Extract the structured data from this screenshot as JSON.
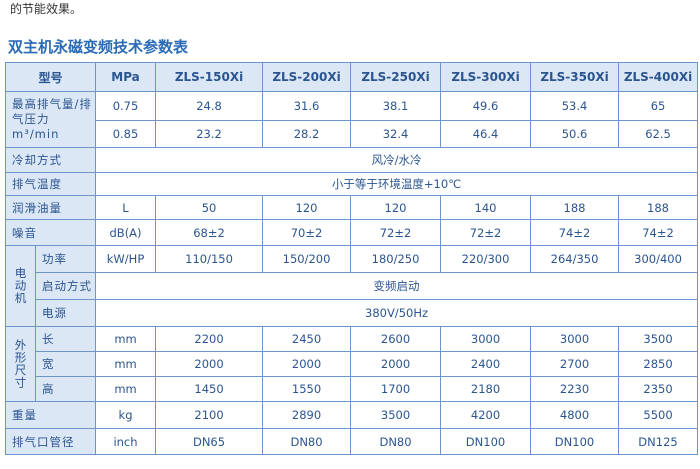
{
  "intro": "的节能效果。",
  "title": "双主机永磁变频技术参数表",
  "table": {
    "header": [
      "型号",
      "MPa",
      "ZLS-150Xi",
      "ZLS-200Xi",
      "ZLS-250Xi",
      "ZLS-300Xi",
      "ZLS-350Xi",
      "ZLS-400Xi"
    ],
    "sections": [
      {
        "label": "最高排气量/排气压力",
        "unit": "m³/min",
        "rows": [
          [
            "0.75",
            "24.8",
            "31.6",
            "38.1",
            "49.6",
            "53.4",
            "65"
          ],
          [
            "0.85",
            "23.2",
            "28.2",
            "32.4",
            "46.4",
            "50.6",
            "62.5"
          ]
        ]
      },
      {
        "label": "冷却方式",
        "span": "风冷/水冷"
      },
      {
        "label": "排气温度",
        "span": "小于等于环境温度+10℃"
      },
      {
        "label": "润滑油量",
        "cells": [
          "L",
          "50",
          "120",
          "120",
          "140",
          "188",
          "188"
        ]
      },
      {
        "label": "噪音",
        "cells": [
          "dB(A)",
          "68±2",
          "70±2",
          "72±2",
          "72±2",
          "74±2",
          "74±2"
        ]
      },
      {
        "group": "电动机",
        "rows": [
          {
            "label": "功率",
            "cells": [
              "kW/HP",
              "110/150",
              "150/200",
              "180/250",
              "220/300",
              "264/350",
              "300/400"
            ]
          },
          {
            "label": "启动方式",
            "span": "变频启动"
          },
          {
            "label": "电源",
            "span": "380V/50Hz"
          }
        ]
      },
      {
        "group": "外形尺寸",
        "rows": [
          {
            "label": "长",
            "cells": [
              "mm",
              "2200",
              "2450",
              "2600",
              "3000",
              "3000",
              "3500"
            ]
          },
          {
            "label": "宽",
            "cells": [
              "mm",
              "2000",
              "2000",
              "2000",
              "2400",
              "2700",
              "2850"
            ]
          },
          {
            "label": "高",
            "cells": [
              "mm",
              "1450",
              "1550",
              "1700",
              "2180",
              "2230",
              "2350"
            ]
          }
        ]
      },
      {
        "label": "重量",
        "cells": [
          "kg",
          "2100",
          "2890",
          "3500",
          "4200",
          "4800",
          "5500"
        ]
      },
      {
        "label": "排气口管径",
        "cells": [
          "inch",
          "DN65",
          "DN80",
          "DN80",
          "DN100",
          "DN100",
          "DN125"
        ]
      }
    ]
  }
}
